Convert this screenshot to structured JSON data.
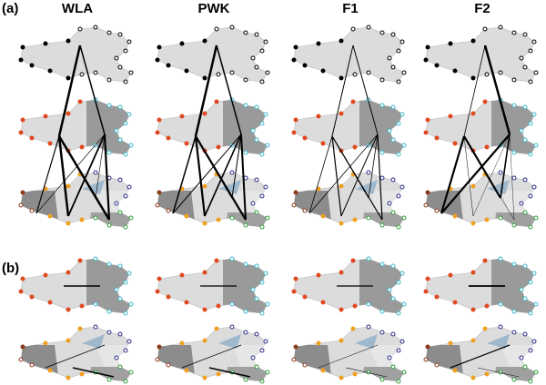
{
  "panels": [
    {
      "label": "(a)"
    },
    {
      "label": "(b)"
    }
  ],
  "columns": [
    "WLA",
    "PWK",
    "F1",
    "F2"
  ]
}
